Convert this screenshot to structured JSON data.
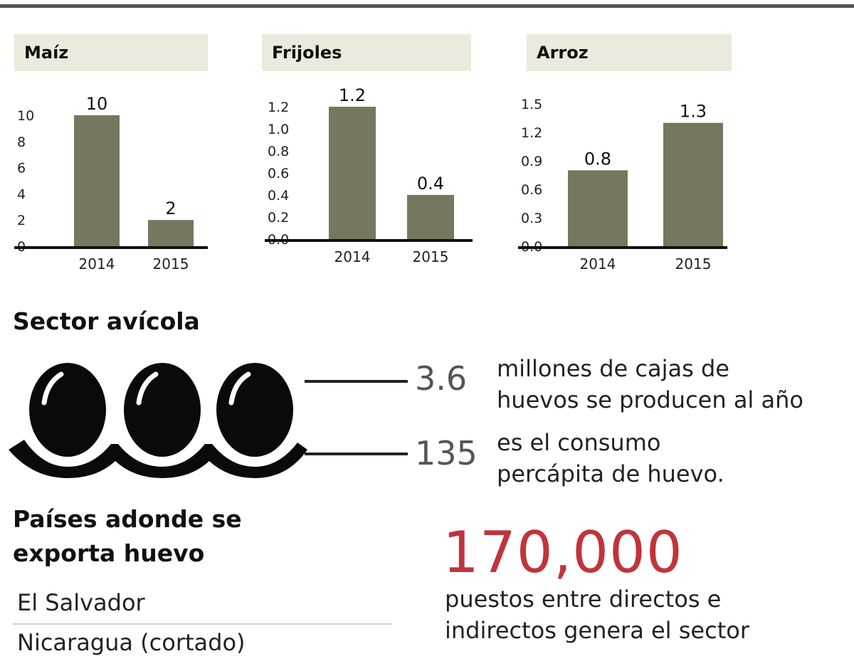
{
  "chart_data": [
    {
      "type": "bar",
      "title": "Maíz",
      "categories": [
        "2014",
        "2015"
      ],
      "values": [
        10,
        2
      ],
      "value_labels": [
        "10",
        "2"
      ],
      "yticks": [
        "0",
        "2",
        "4",
        "6",
        "8",
        "10"
      ],
      "ylim": [
        0,
        10
      ],
      "color": "#77775f"
    },
    {
      "type": "bar",
      "title": "Frijoles",
      "categories": [
        "2014",
        "2015"
      ],
      "values": [
        1.2,
        0.4
      ],
      "value_labels": [
        "1.2",
        "0.4"
      ],
      "yticks": [
        "0.0",
        "0.2",
        "0.4",
        "0.6",
        "0.8",
        "1.0",
        "1.2"
      ],
      "ylim": [
        0,
        1.2
      ],
      "color": "#77775f"
    },
    {
      "type": "bar",
      "title": "Arroz",
      "categories": [
        "2014",
        "2015"
      ],
      "values": [
        0.8,
        1.3
      ],
      "value_labels": [
        "0.8",
        "1.3"
      ],
      "yticks": [
        "0.0",
        "0.3",
        "0.6",
        "0.9",
        "1.2",
        "1.5"
      ],
      "ylim": [
        0,
        1.5
      ],
      "color": "#77775f"
    }
  ],
  "sector": {
    "title": "Sector avícola",
    "stats": [
      {
        "number": "3.6",
        "text_line1": "millones de cajas de",
        "text_line2": "huevos se producen al año"
      },
      {
        "number": "135",
        "text_line1": "es el consumo",
        "text_line2": "percápita de huevo."
      }
    ]
  },
  "countries": {
    "title_line1": "Países adonde se",
    "title_line2": "exporta huevo",
    "items": [
      "El Salvador",
      "Nicaragua (cortado)"
    ]
  },
  "jobs": {
    "number": "170,000",
    "text_line1": "puestos entre directos e",
    "text_line2": "indirectos genera el sector"
  },
  "colors": {
    "accent": "#c0343c",
    "bar": "#77775f",
    "header_bg": "#ebeadc"
  }
}
